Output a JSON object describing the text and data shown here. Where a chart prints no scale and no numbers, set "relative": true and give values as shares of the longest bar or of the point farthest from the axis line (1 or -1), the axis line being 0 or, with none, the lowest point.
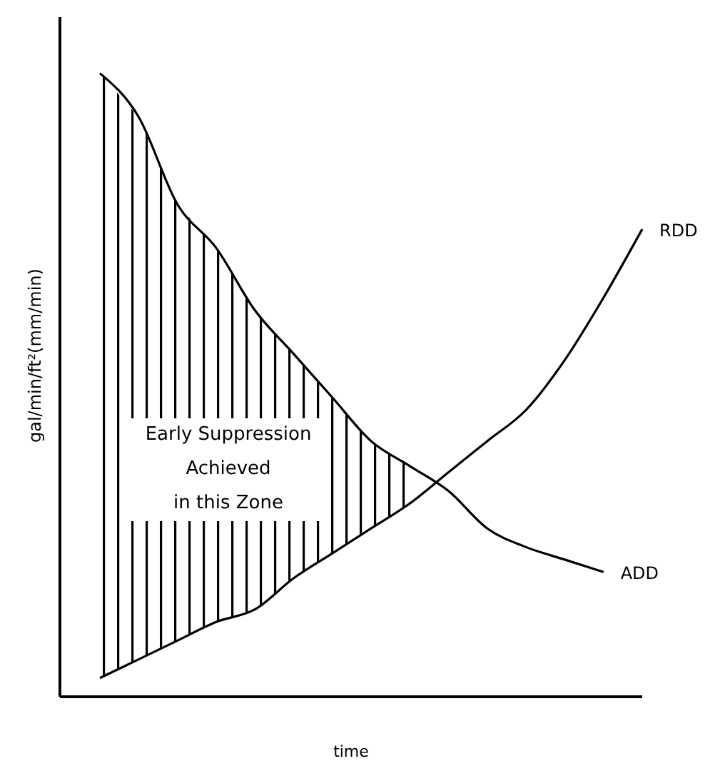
{
  "chart_data": {
    "type": "line",
    "relative": true,
    "xlabel": "time",
    "ylabel": "gal/min/ft²(mm/min)",
    "marker": "none",
    "categories": [
      null,
      null,
      null,
      null,
      null,
      null,
      null,
      null,
      null,
      null,
      null,
      null,
      null,
      null,
      null
    ],
    "series": [
      {
        "name": "ADD",
        "color": "#000000",
        "values": [
          1.0,
          0.93,
          0.79,
          0.72,
          0.62,
          0.55,
          0.48,
          0.41,
          0.37,
          0.33,
          0.27,
          0.24,
          0.22,
          0.2,
          null
        ],
        "lower": [
          0.03,
          0.06,
          0.09,
          0.12,
          0.14,
          0.19,
          0.23,
          0.27,
          0.31,
          null,
          null,
          null,
          null,
          null,
          null
        ],
        "upper": [
          1.0,
          0.93,
          0.79,
          0.72,
          0.62,
          0.55,
          0.48,
          0.41,
          0.37,
          null,
          null,
          null,
          null,
          null,
          null
        ]
      },
      {
        "name": "RDD",
        "color": "#000000",
        "values": [
          0.03,
          0.06,
          0.09,
          0.12,
          0.14,
          0.19,
          0.23,
          0.27,
          0.31,
          0.36,
          0.41,
          0.46,
          0.54,
          0.64,
          0.75
        ]
      }
    ],
    "annotations": [
      "Early Suppression\nAchieved\nin this Zone"
    ]
  }
}
